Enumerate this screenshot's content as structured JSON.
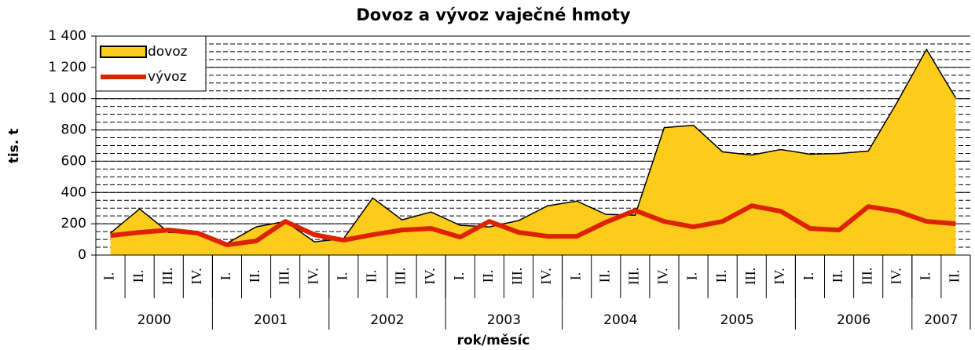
{
  "chart_data": {
    "type": "area-line",
    "title": "Dovoz a vývoz vaječné hmoty",
    "y_label": "tis. t",
    "x_label": "rok/měsíc",
    "categories": [
      "I.",
      "II.",
      "III.",
      "IV.",
      "I.",
      "II.",
      "III.",
      "IV.",
      "I.",
      "II.",
      "III.",
      "IV.",
      "I.",
      "II.",
      "III.",
      "IV.",
      "I.",
      "II.",
      "III.",
      "IV.",
      "I.",
      "II.",
      "III.",
      "IV.",
      "I.",
      "II.",
      "III.",
      "IV.",
      "I.",
      "II."
    ],
    "category_groups": [
      {
        "label": "2000",
        "count": 4
      },
      {
        "label": "2001",
        "count": 4
      },
      {
        "label": "2002",
        "count": 4
      },
      {
        "label": "2003",
        "count": 4
      },
      {
        "label": "2004",
        "count": 4
      },
      {
        "label": "2005",
        "count": 4
      },
      {
        "label": "2006",
        "count": 4
      },
      {
        "label": "2007",
        "count": 2
      }
    ],
    "series": [
      {
        "name": "dovoz",
        "color": "#fccc1c",
        "kind": "area",
        "values": [
          140,
          295,
          145,
          140,
          75,
          180,
          215,
          85,
          105,
          365,
          225,
          275,
          190,
          180,
          220,
          315,
          345,
          260,
          255,
          815,
          830,
          660,
          640,
          675,
          645,
          650,
          665,
          980,
          1315,
          1005
        ]
      },
      {
        "name": "vývoz",
        "color": "#dd2200",
        "kind": "line",
        "values": [
          125,
          145,
          160,
          140,
          65,
          90,
          215,
          130,
          95,
          130,
          160,
          170,
          115,
          215,
          145,
          120,
          120,
          210,
          285,
          215,
          180,
          215,
          315,
          280,
          170,
          160,
          310,
          280,
          215,
          200
        ]
      }
    ],
    "ylim": [
      0,
      1400
    ],
    "yticks": [
      0,
      200,
      400,
      600,
      800,
      {
        "value": 1000,
        "label": "1 000"
      },
      {
        "value": 1200,
        "label": "1 200"
      },
      {
        "value": 1400,
        "label": "1 400"
      }
    ],
    "minor_step": 50,
    "grid": true,
    "legend": "top-left"
  }
}
